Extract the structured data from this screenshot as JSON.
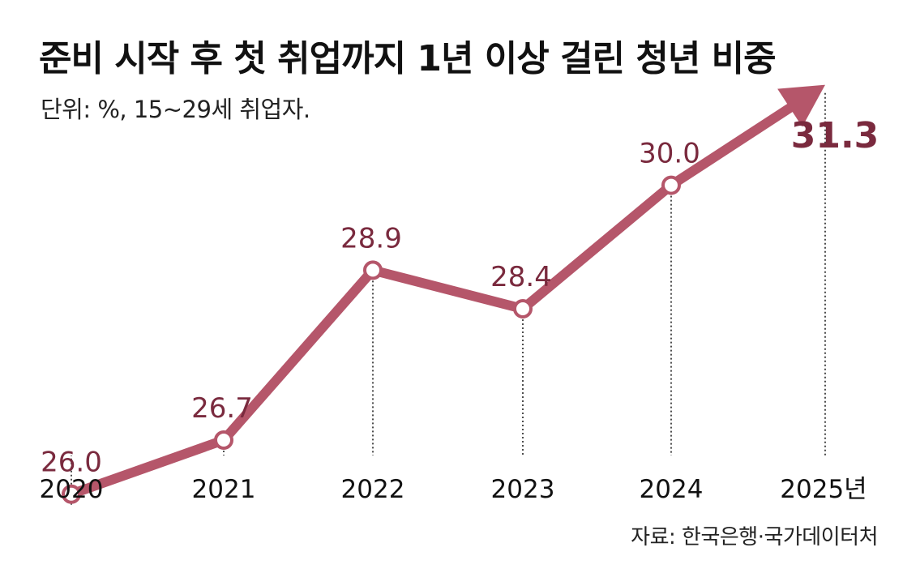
{
  "title": "준비 시작 후 첫 취업까지 1년 이상 걸린 청년 비중",
  "unit_note": "단위: %, 15~29세 취업자.",
  "source": "자료: 한국은행·국가데이터처",
  "colors": {
    "line": "#b5566a",
    "value_label": "#7a2a3e",
    "axis_label": "#111111",
    "guide": "#222222"
  },
  "chart_data": {
    "type": "line",
    "title": "준비 시작 후 첫 취업까지 1년 이상 걸린 청년 비중",
    "xlabel": "",
    "ylabel": "",
    "categories": [
      "2020",
      "2021",
      "2022",
      "2023",
      "2024",
      "2025년"
    ],
    "series": [
      {
        "values": [
          26.0,
          26.7,
          28.9,
          28.4,
          30.0,
          31.3
        ]
      }
    ],
    "value_labels": [
      "26.0",
      "26.7",
      "28.9",
      "28.4",
      "30.0",
      "31.3"
    ],
    "ylim": [
      25,
      32
    ],
    "grid": false,
    "last_point_marker": "arrow"
  }
}
